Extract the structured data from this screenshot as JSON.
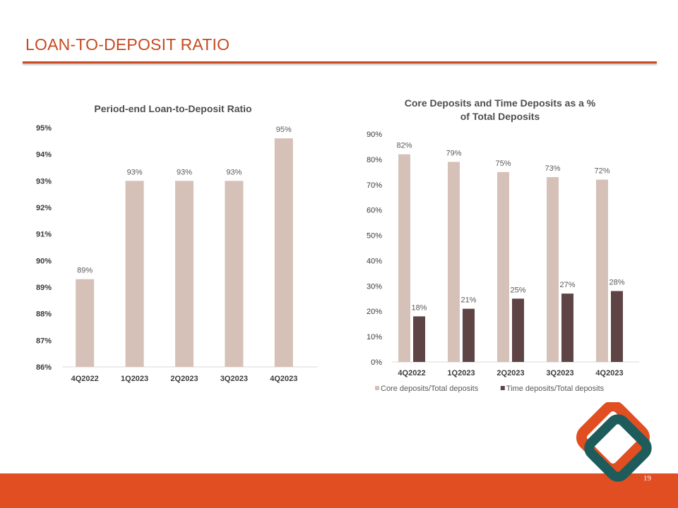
{
  "slide": {
    "title": "LOAN-TO-DEPOSIT RATIO",
    "page_number": "19",
    "colors": {
      "accent": "#c8491f",
      "footer": "#e04e22",
      "bar_light": "#d6c1b8",
      "bar_dark": "#5e4445",
      "logo_teal": "#1e5c5c"
    }
  },
  "chart_data": [
    {
      "type": "bar",
      "title": "Period-end Loan-to-Deposit Ratio",
      "categories": [
        "4Q2022",
        "1Q2023",
        "2Q2023",
        "3Q2023",
        "4Q2023"
      ],
      "values": [
        89.3,
        93.0,
        93.0,
        93.0,
        94.6
      ],
      "data_labels": [
        "89%",
        "93%",
        "93%",
        "93%",
        "95%"
      ],
      "ylim": [
        86,
        95
      ],
      "yticks": [
        86,
        87,
        88,
        89,
        90,
        91,
        92,
        93,
        94,
        95
      ],
      "ytick_labels": [
        "86%",
        "87%",
        "88%",
        "89%",
        "90%",
        "91%",
        "92%",
        "93%",
        "94%",
        "95%"
      ],
      "xlabel": "",
      "ylabel": "",
      "grid": false
    },
    {
      "type": "bar",
      "title": [
        "Core Deposits and Time Deposits as a %",
        "of Total Deposits"
      ],
      "categories": [
        "4Q2022",
        "1Q2023",
        "2Q2023",
        "3Q2023",
        "4Q2023"
      ],
      "series": [
        {
          "name": "Core deposits/Total deposits",
          "values": [
            82,
            79,
            75,
            73,
            72
          ],
          "data_labels": [
            "82%",
            "79%",
            "75%",
            "73%",
            "72%"
          ],
          "color": "#d6c1b8"
        },
        {
          "name": "Time deposits/Total deposits",
          "values": [
            18,
            21,
            25,
            27,
            28
          ],
          "data_labels": [
            "18%",
            "21%",
            "25%",
            "27%",
            "28%"
          ],
          "color": "#5e4445"
        }
      ],
      "ylim": [
        0,
        90
      ],
      "yticks": [
        0,
        10,
        20,
        30,
        40,
        50,
        60,
        70,
        80,
        90
      ],
      "ytick_labels": [
        "0%",
        "10%",
        "20%",
        "30%",
        "40%",
        "50%",
        "60%",
        "70%",
        "80%",
        "90%"
      ],
      "xlabel": "",
      "ylabel": "",
      "grid": false,
      "legend_position": "bottom"
    }
  ]
}
